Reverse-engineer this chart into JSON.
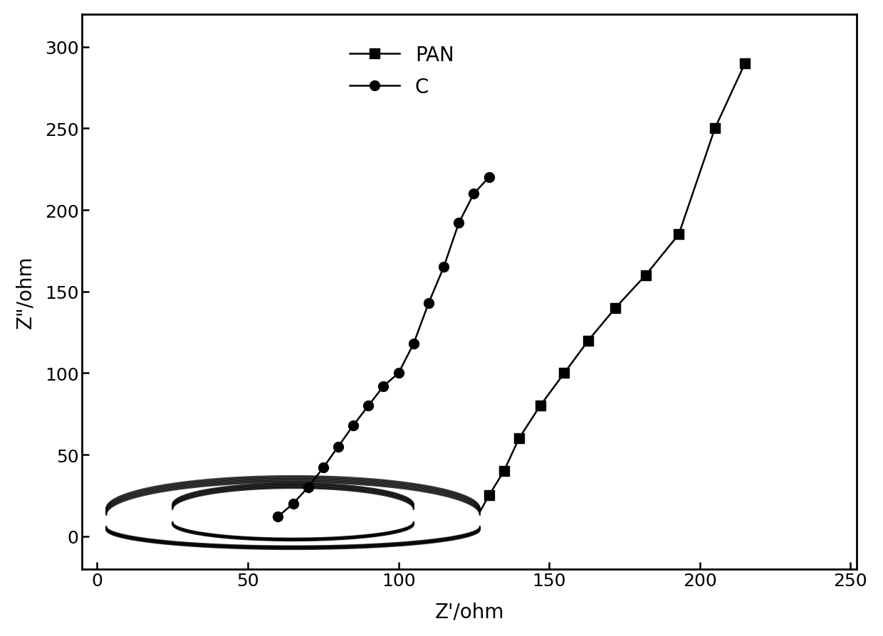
{
  "pan_sparse_x": [
    130,
    135,
    140,
    147,
    155,
    163,
    172,
    182,
    193,
    205,
    215
  ],
  "pan_sparse_y": [
    25,
    40,
    60,
    80,
    100,
    120,
    140,
    160,
    185,
    250,
    290
  ],
  "c_sparse_x": [
    60,
    65,
    70,
    75,
    80,
    85,
    90,
    95,
    100,
    105,
    110,
    115,
    120,
    125,
    130
  ],
  "c_sparse_y": [
    12,
    20,
    30,
    42,
    55,
    68,
    80,
    92,
    100,
    118,
    143,
    165,
    192,
    210,
    220
  ],
  "xlabel": "Z'/ohm",
  "ylabel": "Z\"/ohm",
  "xlim": [
    -5,
    252
  ],
  "ylim": [
    -20,
    320
  ],
  "xticks": [
    0,
    50,
    100,
    150,
    200,
    250
  ],
  "yticks": [
    0,
    50,
    100,
    150,
    200,
    250,
    300
  ],
  "line_color": "#000000",
  "background_color": "#ffffff",
  "legend_labels": [
    "PAN",
    "C"
  ],
  "fontsize_label": 20,
  "fontsize_tick": 18,
  "fontsize_legend": 20,
  "linewidth": 1.8,
  "marker_size": 10,
  "loop_linewidth": 1.5
}
